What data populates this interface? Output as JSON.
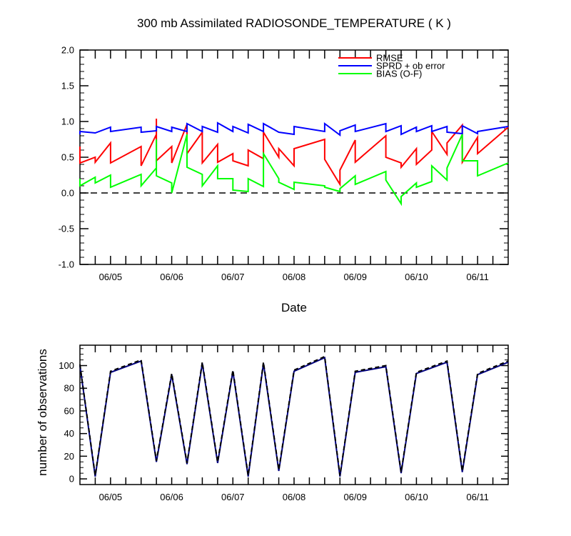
{
  "chart_data": [
    {
      "type": "line",
      "title": "300 mb Assimilated RADIOSONDE_TEMPERATURE ( K )",
      "xlabel": "Date",
      "ylabel": "",
      "ylim": [
        -1.0,
        2.0
      ],
      "yticks": [
        -1.0,
        -0.5,
        0.0,
        0.5,
        1.0,
        1.5,
        2.0
      ],
      "ytick_labels": [
        "-1.0",
        "-0.5",
        "0.0",
        "0.5",
        "1.0",
        "1.5",
        "2.0"
      ],
      "xlim": [
        0,
        28
      ],
      "xticks": [
        2,
        6,
        10,
        14,
        18,
        22,
        26
      ],
      "xtick_labels": [
        "06/05",
        "06/06",
        "06/07",
        "06/08",
        "06/09",
        "06/10",
        "06/11"
      ],
      "zero_line": 0.0,
      "legend_position": "top-right",
      "series": [
        {
          "name": "RMSE",
          "color": "#ff0000",
          "x": [
            0,
            0,
            1,
            1,
            2,
            2,
            4,
            4,
            5,
            5,
            5,
            6,
            6,
            7,
            7,
            8,
            8,
            9,
            9,
            10,
            10,
            11,
            11,
            12,
            12,
            13,
            13,
            14,
            14,
            16,
            16,
            17,
            17,
            18,
            18,
            20,
            20,
            21,
            21,
            22,
            22,
            23,
            23,
            24,
            24,
            25,
            25,
            26,
            26,
            28
          ],
          "y": [
            0.65,
            0.42,
            0.5,
            0.43,
            0.7,
            0.42,
            0.65,
            0.38,
            0.82,
            1.04,
            0.45,
            0.65,
            0.42,
            0.96,
            0.55,
            0.85,
            0.42,
            0.68,
            0.43,
            0.55,
            0.45,
            0.38,
            0.6,
            0.48,
            0.85,
            0.5,
            0.62,
            0.38,
            0.62,
            0.75,
            0.47,
            0.12,
            0.32,
            0.74,
            0.43,
            0.8,
            0.5,
            0.42,
            0.36,
            0.62,
            0.4,
            0.6,
            0.86,
            0.54,
            0.7,
            0.95,
            0.43,
            0.78,
            0.55,
            0.92
          ]
        },
        {
          "name": "SPRD + ob error",
          "color": "#0000ff",
          "x": [
            0,
            0,
            1,
            2,
            2,
            4,
            4,
            5,
            5,
            6,
            6,
            7,
            7,
            8,
            8,
            9,
            9,
            10,
            10,
            11,
            11,
            12,
            12,
            13,
            13,
            14,
            14,
            16,
            16,
            17,
            17,
            18,
            18,
            20,
            20,
            21,
            21,
            22,
            22,
            23,
            23,
            24,
            24,
            25,
            25,
            26,
            26,
            28
          ],
          "y": [
            0.82,
            0.86,
            0.84,
            0.92,
            0.86,
            0.92,
            0.85,
            0.87,
            0.93,
            0.86,
            0.92,
            0.86,
            0.97,
            0.86,
            0.93,
            0.85,
            0.98,
            0.86,
            0.93,
            0.84,
            0.96,
            0.86,
            0.97,
            0.85,
            0.85,
            0.82,
            0.93,
            0.86,
            0.97,
            0.81,
            0.87,
            0.95,
            0.86,
            0.97,
            0.86,
            0.94,
            0.82,
            0.92,
            0.86,
            0.94,
            0.86,
            0.93,
            0.85,
            0.83,
            0.94,
            0.83,
            0.86,
            0.93
          ]
        },
        {
          "name": "BIAS (O-F)",
          "color": "#00ff00",
          "x": [
            0,
            0,
            1,
            1,
            2,
            2,
            4,
            4,
            5,
            5,
            5,
            6,
            6,
            7,
            7,
            8,
            8,
            9,
            9,
            10,
            10,
            11,
            11,
            12,
            12,
            13,
            13,
            14,
            14,
            16,
            16,
            17,
            17,
            18,
            18,
            20,
            20,
            21,
            21,
            22,
            22,
            23,
            23,
            24,
            24,
            25,
            25,
            26,
            26,
            28
          ],
          "y": [
            0.2,
            0.1,
            0.22,
            0.14,
            0.25,
            0.08,
            0.26,
            0.1,
            0.35,
            0.75,
            0.24,
            0.14,
            0.0,
            0.82,
            0.36,
            0.26,
            0.1,
            0.38,
            0.2,
            0.2,
            0.04,
            0.02,
            0.2,
            0.09,
            0.55,
            0.2,
            0.15,
            0.05,
            0.15,
            0.1,
            0.08,
            0.02,
            0.06,
            0.24,
            0.12,
            0.3,
            0.18,
            -0.15,
            -0.05,
            0.14,
            0.08,
            0.16,
            0.38,
            0.18,
            0.35,
            0.82,
            0.45,
            0.45,
            0.24,
            0.42
          ]
        }
      ]
    },
    {
      "type": "line",
      "title": "",
      "xlabel": "",
      "ylabel": "number of observations",
      "ylim": [
        -5,
        118
      ],
      "yticks": [
        0,
        20,
        40,
        60,
        80,
        100
      ],
      "ytick_labels": [
        "0",
        "20",
        "40",
        "60",
        "80",
        "100"
      ],
      "xlim": [
        0,
        28
      ],
      "xticks": [
        2,
        6,
        10,
        14,
        18,
        22,
        26
      ],
      "xtick_labels": [
        "06/05",
        "06/06",
        "06/07",
        "06/08",
        "06/09",
        "06/10",
        "06/11"
      ],
      "series": [
        {
          "name": "solid",
          "color": "#000080",
          "dash": "none",
          "x": [
            0,
            1,
            2,
            4,
            5,
            6,
            7,
            8,
            9,
            10,
            11,
            12,
            13,
            14,
            16,
            17,
            18,
            20,
            21,
            22,
            24,
            25,
            26,
            28
          ],
          "y": [
            100,
            2,
            94,
            104,
            15,
            92,
            13,
            102,
            14,
            95,
            2,
            102,
            7,
            95,
            107,
            2,
            94,
            99,
            5,
            93,
            103,
            6,
            92,
            103
          ]
        },
        {
          "name": "dashed",
          "color": "#000000",
          "dash": "6,4",
          "x": [
            0,
            1,
            2,
            4,
            5,
            6,
            7,
            8,
            9,
            10,
            11,
            12,
            13,
            14,
            16,
            17,
            18,
            20,
            21,
            22,
            24,
            25,
            26,
            28
          ],
          "y": [
            101,
            3,
            95,
            105,
            16,
            93,
            14,
            103,
            15,
            96,
            3,
            103,
            8,
            96,
            108,
            3,
            95,
            100,
            6,
            94,
            104,
            7,
            93,
            104
          ]
        }
      ]
    }
  ]
}
